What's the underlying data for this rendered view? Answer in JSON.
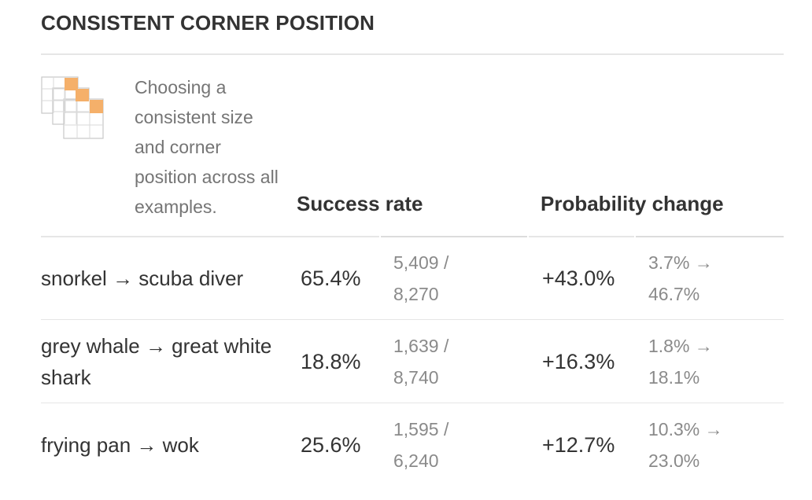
{
  "section": {
    "title": "CONSISTENT CORNER POSITION",
    "description": "Choosing a consistent size and corner position across all examples.",
    "icon": "stacked-grid-corner-icon",
    "accent_color": "#f5b06a"
  },
  "columns": {
    "success": "Success rate",
    "probability": "Probability change"
  },
  "rows": [
    {
      "label": "snorkel → scuba diver",
      "rate": "65.4%",
      "count_line1": "5,409 /",
      "count_line2": "8,270",
      "delta": "+43.0%",
      "range_line1": "3.7% →",
      "range_line2": "46.7%"
    },
    {
      "label": "grey whale → great white shark",
      "rate": "18.8%",
      "count_line1": "1,639 /",
      "count_line2": "8,740",
      "delta": "+16.3%",
      "range_line1": "1.8% →",
      "range_line2": "18.1%"
    },
    {
      "label": "frying pan → wok",
      "rate": "25.6%",
      "count_line1": "1,595 /",
      "count_line2": "6,240",
      "delta": "+12.7%",
      "range_line1": "10.3% →",
      "range_line2": "23.0%"
    }
  ]
}
